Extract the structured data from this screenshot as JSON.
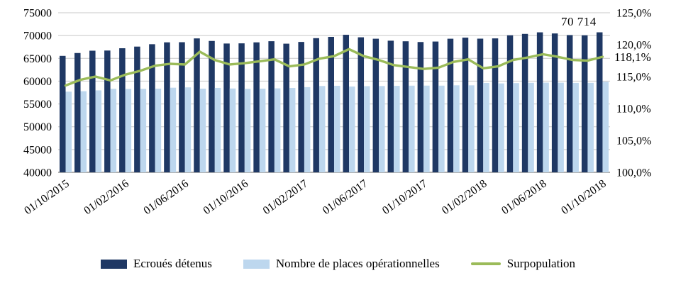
{
  "chart_data": {
    "type": "bar",
    "subtype": "bar-line-combo",
    "title": "",
    "x": [
      "01/10/2015",
      "01/11/2015",
      "01/12/2015",
      "01/01/2016",
      "01/02/2016",
      "01/03/2016",
      "01/04/2016",
      "01/05/2016",
      "01/06/2016",
      "01/07/2016",
      "01/08/2016",
      "01/09/2016",
      "01/10/2016",
      "01/11/2016",
      "01/12/2016",
      "01/01/2017",
      "01/02/2017",
      "01/03/2017",
      "01/04/2017",
      "01/05/2017",
      "01/06/2017",
      "01/07/2017",
      "01/08/2017",
      "01/09/2017",
      "01/10/2017",
      "01/11/2017",
      "01/12/2017",
      "01/01/2018",
      "01/02/2018",
      "01/03/2018",
      "01/04/2018",
      "01/05/2018",
      "01/06/2018",
      "01/07/2018",
      "01/08/2018",
      "01/09/2018",
      "01/10/2018"
    ],
    "x_tick_every": 4,
    "x_tick_labels": [
      "01/10/2015",
      "01/02/2016",
      "01/06/2016",
      "01/10/2016",
      "01/02/2017",
      "01/06/2017",
      "01/10/2017",
      "01/02/2018",
      "01/06/2018",
      "01/10/2018"
    ],
    "series": [
      {
        "name": "Ecroués détenus",
        "type": "bar",
        "axis": "left",
        "color": "#1F3864",
        "values": [
          65544,
          66170,
          66678,
          66716,
          67218,
          67580,
          68102,
          68514,
          68542,
          69375,
          68816,
          68253,
          68292,
          68510,
          68759,
          68220,
          68602,
          69430,
          69714,
          70170,
          69619,
          69307,
          68874,
          68745,
          68583,
          68690,
          69307,
          69543,
          69322,
          69379,
          70059,
          70367,
          70710,
          70461,
          70107,
          70059,
          70714
        ]
      },
      {
        "name": "Nombre de places opérationnelles",
        "type": "bar",
        "axis": "left",
        "color": "#BDD7EE",
        "values": [
          57697,
          57790,
          57981,
          58318,
          58298,
          58309,
          58356,
          58559,
          58633,
          58348,
          58517,
          58386,
          58319,
          58356,
          58419,
          58508,
          58684,
          58939,
          58980,
          58818,
          58899,
          58934,
          58967,
          59009,
          59022,
          59014,
          59086,
          59085,
          59606,
          59502,
          59574,
          59633,
          59671,
          59662,
          59615,
          59625,
          59877
        ]
      },
      {
        "name": "Surpopulation",
        "type": "line",
        "axis": "right",
        "color": "#9BBB59",
        "values": [
          113.6,
          114.5,
          115.0,
          114.4,
          115.3,
          115.9,
          116.7,
          117.0,
          116.9,
          118.9,
          117.6,
          116.9,
          117.1,
          117.4,
          117.7,
          116.6,
          116.9,
          117.8,
          118.2,
          119.3,
          118.2,
          117.6,
          116.8,
          116.5,
          116.2,
          116.4,
          117.3,
          117.7,
          116.3,
          116.6,
          117.6,
          118.0,
          118.5,
          118.1,
          117.6,
          117.5,
          118.1
        ]
      }
    ],
    "left_axis": {
      "min": 40000,
      "max": 75000,
      "step": 5000,
      "ticks": [
        40000,
        45000,
        50000,
        55000,
        60000,
        65000,
        70000,
        75000
      ],
      "tick_labels": [
        "40000",
        "45000",
        "50000",
        "55000",
        "60000",
        "65000",
        "70000",
        "75000"
      ]
    },
    "right_axis": {
      "min": 100,
      "max": 125,
      "step": 5,
      "ticks": [
        100,
        105,
        110,
        115,
        120,
        125
      ],
      "tick_labels": [
        "100,0%",
        "105,0%",
        "110,0%",
        "115,0%",
        "120,0%",
        "125,0%"
      ]
    },
    "grid": true,
    "legend_position": "bottom",
    "annotations": [
      {
        "text": "70 714",
        "target": "last-detenus-bar"
      },
      {
        "text": "118,1%",
        "target": "last-surpopulation-point"
      }
    ]
  }
}
